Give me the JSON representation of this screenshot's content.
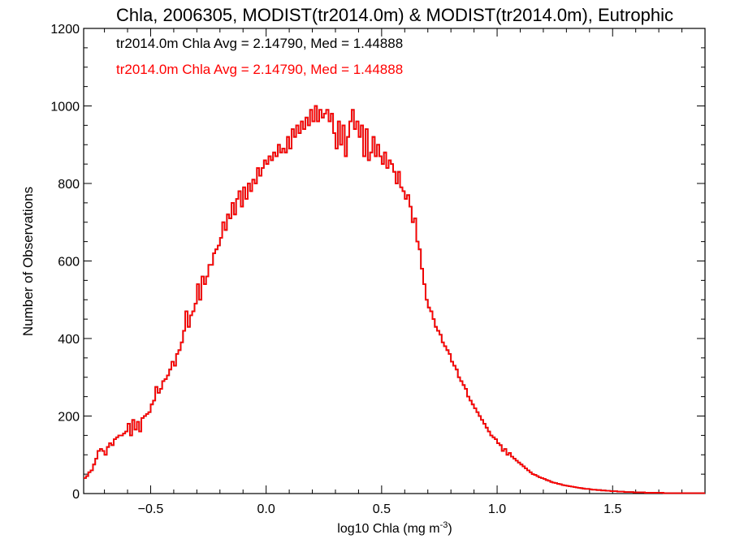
{
  "chart_data": {
    "type": "histogram-step",
    "title": "Chla, 2006305, MODIST(tr2014.0m) & MODIST(tr2014.0m), Eutrophic",
    "xlabel": "log10 Chla (mg m",
    "xlabel_sup": "-3",
    "xlabel_close": ")",
    "ylabel": "Number of Observations",
    "xlim": [
      -0.79,
      1.9
    ],
    "ylim": [
      0,
      1200
    ],
    "x_ticks": [
      -0.5,
      0.0,
      0.5,
      1.0,
      1.5
    ],
    "x_tick_labels": [
      "−0.5",
      "0.0",
      "0.5",
      "1.0",
      "1.5"
    ],
    "y_ticks": [
      0,
      200,
      400,
      600,
      800,
      1000,
      1200
    ],
    "y_tick_labels": [
      "0",
      "200",
      "400",
      "600",
      "800",
      "1000",
      "1200"
    ],
    "annotations": [
      {
        "text": "tr2014.0m Chla Avg = 2.14790, Med = 1.44888",
        "color": "#000000"
      },
      {
        "text": "tr2014.0m Chla Avg = 2.14790, Med = 1.44888",
        "color": "#ff0000"
      }
    ],
    "series": [
      {
        "color": "#000000"
      },
      {
        "color": "#ff0000"
      }
    ],
    "bin_start": -0.79,
    "bin_width": 0.01,
    "values": [
      40,
      45,
      55,
      60,
      75,
      90,
      110,
      115,
      110,
      100,
      120,
      130,
      125,
      140,
      145,
      150,
      150,
      155,
      160,
      180,
      150,
      190,
      165,
      185,
      160,
      195,
      200,
      205,
      210,
      230,
      240,
      275,
      260,
      270,
      290,
      295,
      305,
      320,
      340,
      330,
      360,
      370,
      390,
      420,
      470,
      430,
      460,
      470,
      490,
      540,
      500,
      560,
      540,
      560,
      590,
      590,
      620,
      630,
      640,
      660,
      700,
      680,
      720,
      710,
      750,
      720,
      760,
      780,
      740,
      790,
      760,
      800,
      780,
      810,
      800,
      840,
      820,
      840,
      860,
      850,
      870,
      860,
      880,
      870,
      900,
      880,
      890,
      880,
      920,
      890,
      940,
      920,
      950,
      930,
      960,
      940,
      970,
      950,
      990,
      960,
      1000,
      960,
      990,
      970,
      980,
      990,
      960,
      980,
      930,
      890,
      960,
      900,
      950,
      870,
      920,
      960,
      990,
      940,
      960,
      920,
      950,
      870,
      940,
      860,
      880,
      920,
      870,
      900,
      870,
      850,
      880,
      840,
      860,
      850,
      830,
      800,
      830,
      790,
      780,
      760,
      770,
      740,
      700,
      710,
      650,
      630,
      580,
      540,
      500,
      480,
      470,
      450,
      430,
      420,
      410,
      390,
      380,
      370,
      360,
      340,
      330,
      320,
      300,
      290,
      280,
      270,
      250,
      240,
      230,
      220,
      210,
      200,
      190,
      180,
      170,
      160,
      150,
      145,
      140,
      130,
      125,
      110,
      115,
      100,
      105,
      95,
      90,
      85,
      80,
      75,
      70,
      65,
      60,
      55,
      50,
      48,
      45,
      42,
      40,
      38,
      35,
      33,
      30,
      28,
      27,
      25,
      24,
      22,
      21,
      20,
      19,
      18,
      17,
      16,
      15,
      14,
      13,
      12,
      12,
      11,
      10,
      10,
      9,
      9,
      8,
      8,
      7,
      7,
      6,
      6,
      6,
      5,
      5,
      5,
      4,
      4,
      4,
      4,
      3,
      3,
      3,
      3,
      3,
      2,
      2,
      2,
      2,
      2,
      2,
      2,
      2,
      1,
      1,
      1,
      1,
      1,
      1,
      1,
      1,
      1,
      1,
      1,
      1,
      1,
      1,
      1,
      1,
      1,
      1,
      1,
      1,
      1,
      1,
      1,
      1,
      1,
      1,
      1
    ]
  }
}
